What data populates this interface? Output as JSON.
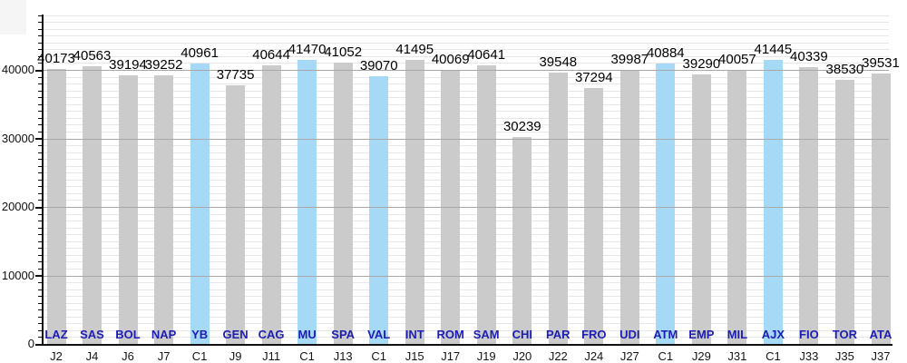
{
  "colors": {
    "bar_default": "#cbcbcb",
    "bar_highlight": "#a5d9f5",
    "team_label": "#1d1db5",
    "axis": "#111111",
    "grid_minor": "#e7e7e7",
    "grid_major": "#a8a8a8",
    "value_label": "#000000",
    "match_label": "#151515"
  },
  "chart_data": {
    "type": "bar",
    "title": "",
    "xlabel": "",
    "ylabel": "",
    "ylim": [
      0,
      49000
    ],
    "grid": "horizontal, minor every 1000, major every 10000",
    "legend": "none",
    "highlight_meaning": "light-blue bars = C1 (Champions League) matches, gray bars = league matchdays",
    "y_axis_ticks": [
      {
        "value": 0,
        "label": "0"
      },
      {
        "value": 10000,
        "label": "10000"
      },
      {
        "value": 20000,
        "label": "20000"
      },
      {
        "value": 30000,
        "label": "30000"
      },
      {
        "value": 40000,
        "label": "40000"
      }
    ],
    "categories": [
      "J2",
      "J4",
      "J6",
      "J7",
      "C1",
      "J9",
      "J11",
      "C1",
      "J13",
      "C1",
      "J15",
      "J17",
      "J19",
      "J20",
      "J22",
      "J24",
      "J27",
      "C1",
      "J29",
      "J31",
      "C1",
      "J33",
      "J35",
      "J37"
    ],
    "teams": [
      "LAZ",
      "SAS",
      "BOL",
      "NAP",
      "YB",
      "GEN",
      "CAG",
      "MU",
      "SPA",
      "VAL",
      "INT",
      "ROM",
      "SAM",
      "CHI",
      "PAR",
      "FRO",
      "UDI",
      "ATM",
      "EMP",
      "MIL",
      "AJX",
      "FIO",
      "TOR",
      "ATA"
    ],
    "values": [
      40173,
      40563,
      39194,
      39252,
      40961,
      37735,
      40644,
      41470,
      41052,
      39070,
      41495,
      40069,
      40641,
      30239,
      39548,
      37294,
      39987,
      40884,
      39290,
      40057,
      41445,
      40339,
      38530,
      39531
    ],
    "bars": [
      {
        "team": "LAZ",
        "match": "J2",
        "value": 40173,
        "ucl": false
      },
      {
        "team": "SAS",
        "match": "J4",
        "value": 40563,
        "ucl": false
      },
      {
        "team": "BOL",
        "match": "J6",
        "value": 39194,
        "ucl": false
      },
      {
        "team": "NAP",
        "match": "J7",
        "value": 39252,
        "ucl": false
      },
      {
        "team": "YB",
        "match": "C1",
        "value": 40961,
        "ucl": true
      },
      {
        "team": "GEN",
        "match": "J9",
        "value": 37735,
        "ucl": false
      },
      {
        "team": "CAG",
        "match": "J11",
        "value": 40644,
        "ucl": false
      },
      {
        "team": "MU",
        "match": "C1",
        "value": 41470,
        "ucl": true
      },
      {
        "team": "SPA",
        "match": "J13",
        "value": 41052,
        "ucl": false
      },
      {
        "team": "VAL",
        "match": "C1",
        "value": 39070,
        "ucl": true
      },
      {
        "team": "INT",
        "match": "J15",
        "value": 41495,
        "ucl": false
      },
      {
        "team": "ROM",
        "match": "J17",
        "value": 40069,
        "ucl": false
      },
      {
        "team": "SAM",
        "match": "J19",
        "value": 40641,
        "ucl": false
      },
      {
        "team": "CHI",
        "match": "J20",
        "value": 30239,
        "ucl": false
      },
      {
        "team": "PAR",
        "match": "J22",
        "value": 39548,
        "ucl": false
      },
      {
        "team": "FRO",
        "match": "J24",
        "value": 37294,
        "ucl": false
      },
      {
        "team": "UDI",
        "match": "J27",
        "value": 39987,
        "ucl": false
      },
      {
        "team": "ATM",
        "match": "C1",
        "value": 40884,
        "ucl": true
      },
      {
        "team": "EMP",
        "match": "J29",
        "value": 39290,
        "ucl": false
      },
      {
        "team": "MIL",
        "match": "J31",
        "value": 40057,
        "ucl": false
      },
      {
        "team": "AJX",
        "match": "C1",
        "value": 41445,
        "ucl": true
      },
      {
        "team": "FIO",
        "match": "J33",
        "value": 40339,
        "ucl": false
      },
      {
        "team": "TOR",
        "match": "J35",
        "value": 38530,
        "ucl": false
      },
      {
        "team": "ATA",
        "match": "J37",
        "value": 39531,
        "ucl": false
      }
    ]
  }
}
